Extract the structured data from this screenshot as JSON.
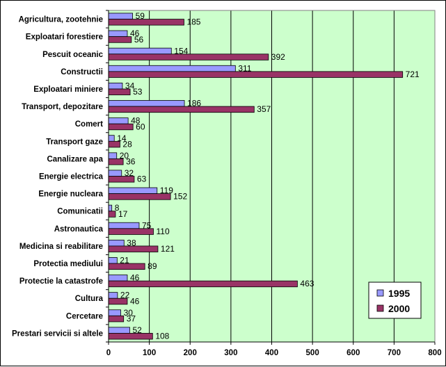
{
  "chart_data": {
    "type": "bar",
    "orientation": "horizontal",
    "categories": [
      "Agricultura, zootehnie",
      "Exploatari forestiere",
      "Pescuit oceanic",
      "Constructii",
      "Exploatari miniere",
      "Transport, depozitare",
      "Comert",
      "Transport gaze",
      "Canalizare apa",
      "Energie electrica",
      "Energie nucleara",
      "Comunicatii",
      "Astronautica",
      "Medicina si reabilitare",
      "Protectia mediului",
      "Protectie la catastrofe",
      "Cultura",
      "Cercetare",
      "Prestari servicii si altele"
    ],
    "series": [
      {
        "name": "1995",
        "color": "#9999ff",
        "values": [
          59,
          46,
          154,
          311,
          34,
          186,
          48,
          14,
          20,
          32,
          119,
          8,
          75,
          38,
          21,
          46,
          22,
          30,
          52
        ]
      },
      {
        "name": "2000",
        "color": "#993366",
        "values": [
          185,
          56,
          392,
          721,
          53,
          357,
          60,
          28,
          36,
          63,
          152,
          17,
          110,
          121,
          89,
          463,
          46,
          37,
          108
        ]
      }
    ],
    "xlim": [
      0,
      800
    ],
    "xticks": [
      "0",
      "100",
      "200",
      "300",
      "400",
      "500",
      "600",
      "700",
      "800"
    ],
    "grid": "vertical",
    "plot_background": "#ccffcc",
    "legend_position": "bottom-right",
    "title": "",
    "xlabel": "",
    "ylabel": ""
  }
}
